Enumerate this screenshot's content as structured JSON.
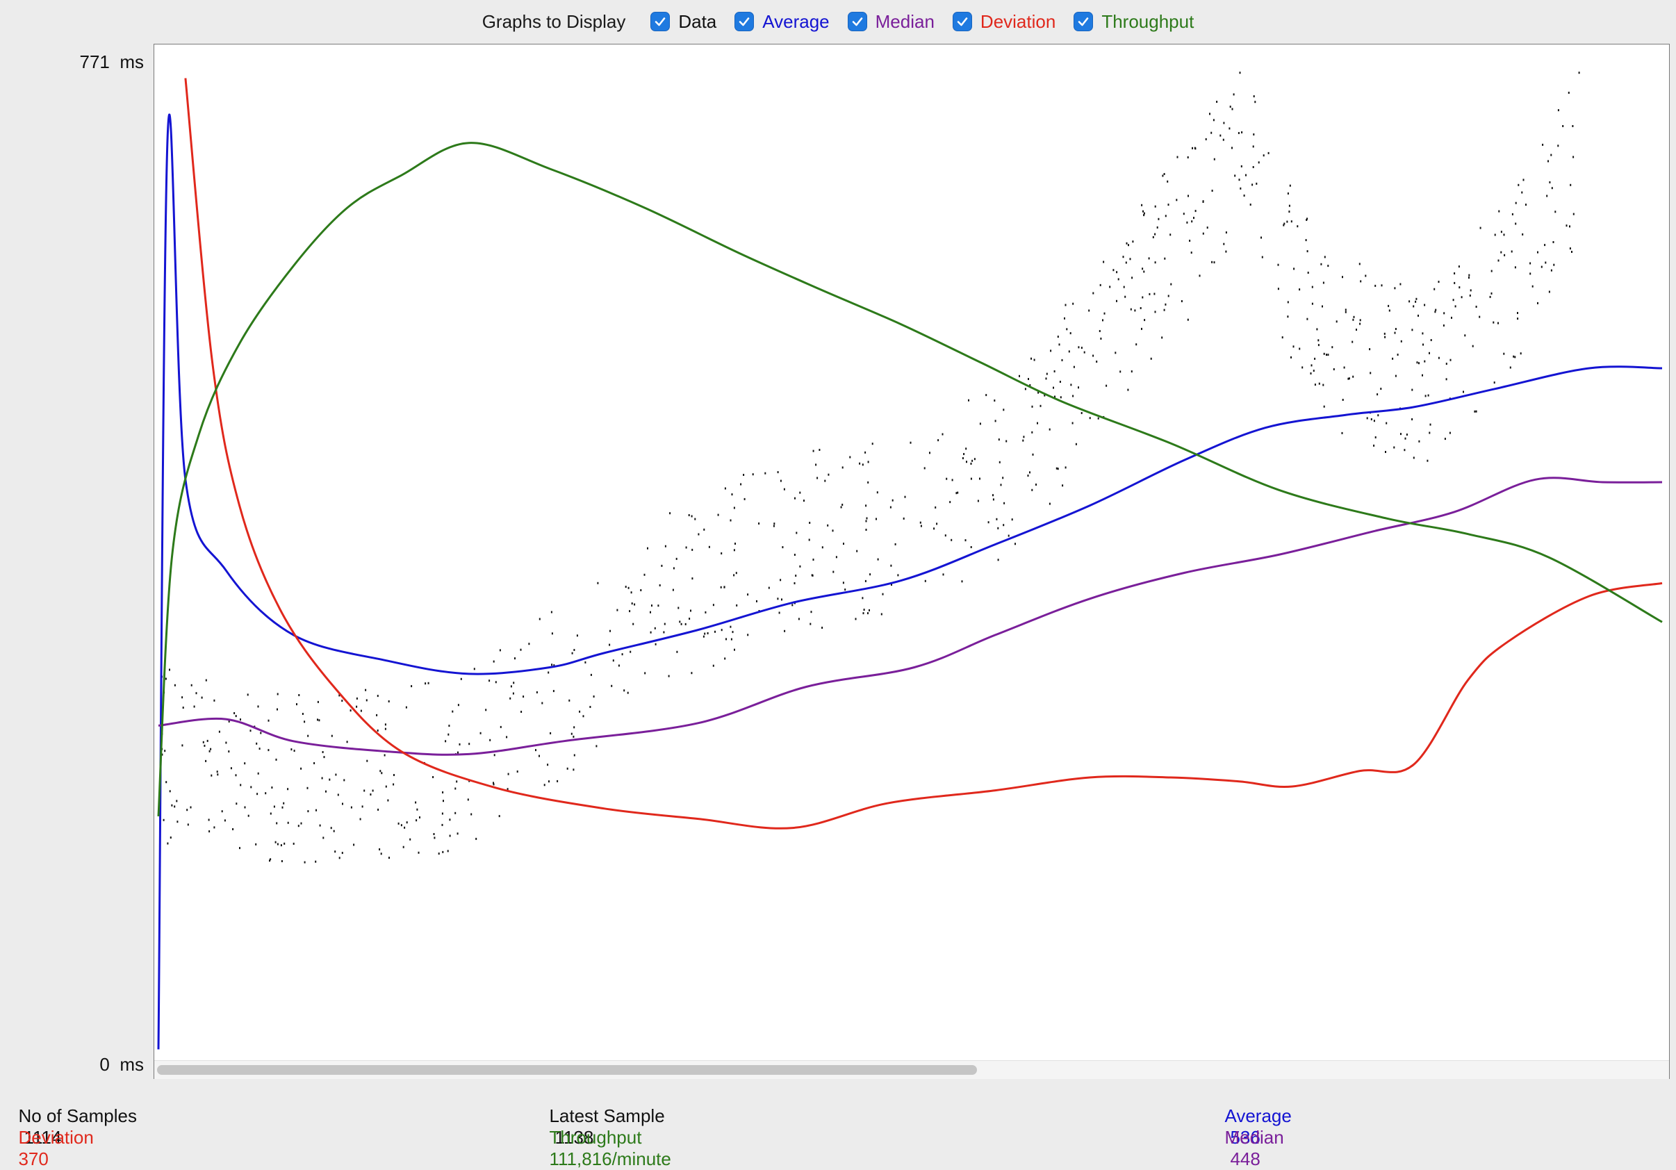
{
  "toolbar": {
    "title": "Graphs to Display",
    "checkboxes": [
      {
        "label": "Data",
        "color": "#111111",
        "checked": true
      },
      {
        "label": "Average",
        "color": "#1414d2",
        "checked": true
      },
      {
        "label": "Median",
        "color": "#7a1f9a",
        "checked": true
      },
      {
        "label": "Deviation",
        "color": "#e0281c",
        "checked": true
      },
      {
        "label": "Throughput",
        "color": "#2d7a1a",
        "checked": true
      }
    ]
  },
  "axis": {
    "y_max_label": "771  ms",
    "y_min_label": "0  ms"
  },
  "stats": {
    "samples_label": "No of Samples",
    "samples_value": "1114",
    "latest_label": "Latest Sample",
    "latest_value": "1138",
    "average_label": "Average",
    "average_value": "536",
    "deviation_label": "Deviation",
    "deviation_value": "370",
    "throughput_label": "Throughput",
    "throughput_value": "111,816/minute",
    "median_label": "Median",
    "median_value": "448"
  },
  "colors": {
    "data": "#111111",
    "average": "#1414d2",
    "median": "#7a1f9a",
    "deviation": "#e0281c",
    "throughput": "#2d7a1a"
  },
  "chart_data": {
    "type": "line",
    "ylim": [
      0,
      771
    ],
    "x_range": [
      0,
      1114
    ],
    "grid": false,
    "series": [
      {
        "name": "Average",
        "points": [
          [
            0,
            10
          ],
          [
            7,
            720
          ],
          [
            20,
            450
          ],
          [
            50,
            380
          ],
          [
            100,
            330
          ],
          [
            170,
            310
          ],
          [
            230,
            300
          ],
          [
            290,
            305
          ],
          [
            330,
            316
          ],
          [
            400,
            334
          ],
          [
            470,
            355
          ],
          [
            550,
            372
          ],
          [
            620,
            400
          ],
          [
            690,
            430
          ],
          [
            760,
            465
          ],
          [
            820,
            490
          ],
          [
            880,
            500
          ],
          [
            930,
            506
          ],
          [
            990,
            520
          ],
          [
            1060,
            536
          ],
          [
            1114,
            536
          ]
        ]
      },
      {
        "name": "Median",
        "points": [
          [
            0,
            260
          ],
          [
            50,
            265
          ],
          [
            100,
            248
          ],
          [
            170,
            240
          ],
          [
            230,
            238
          ],
          [
            300,
            248
          ],
          [
            400,
            262
          ],
          [
            480,
            290
          ],
          [
            560,
            305
          ],
          [
            620,
            330
          ],
          [
            690,
            358
          ],
          [
            760,
            378
          ],
          [
            830,
            392
          ],
          [
            900,
            410
          ],
          [
            960,
            425
          ],
          [
            1020,
            450
          ],
          [
            1070,
            448
          ],
          [
            1114,
            448
          ]
        ]
      },
      {
        "name": "Deviation",
        "points": [
          [
            20,
            760
          ],
          [
            40,
            540
          ],
          [
            60,
            430
          ],
          [
            90,
            350
          ],
          [
            130,
            290
          ],
          [
            180,
            240
          ],
          [
            250,
            212
          ],
          [
            330,
            196
          ],
          [
            400,
            188
          ],
          [
            470,
            181
          ],
          [
            540,
            200
          ],
          [
            620,
            210
          ],
          [
            690,
            220
          ],
          [
            750,
            220
          ],
          [
            800,
            217
          ],
          [
            840,
            213
          ],
          [
            890,
            225
          ],
          [
            930,
            230
          ],
          [
            970,
            295
          ],
          [
            1000,
            325
          ],
          [
            1060,
            360
          ],
          [
            1114,
            370
          ]
        ]
      },
      {
        "name": "Throughput",
        "points": [
          [
            0,
            190
          ],
          [
            10,
            390
          ],
          [
            30,
            485
          ],
          [
            60,
            555
          ],
          [
            100,
            615
          ],
          [
            140,
            660
          ],
          [
            180,
            685
          ],
          [
            230,
            710
          ],
          [
            290,
            690
          ],
          [
            360,
            660
          ],
          [
            430,
            625
          ],
          [
            490,
            597
          ],
          [
            550,
            570
          ],
          [
            610,
            540
          ],
          [
            670,
            510
          ],
          [
            750,
            478
          ],
          [
            830,
            442
          ],
          [
            910,
            420
          ],
          [
            970,
            408
          ],
          [
            1030,
            390
          ],
          [
            1114,
            340
          ]
        ]
      }
    ]
  }
}
